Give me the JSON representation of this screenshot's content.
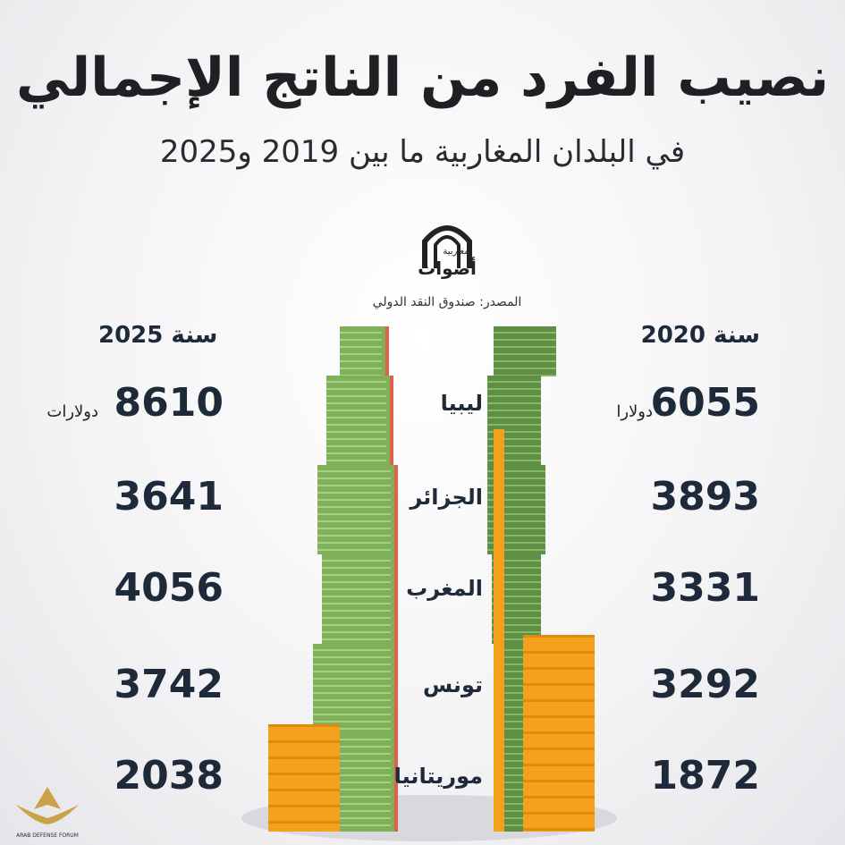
{
  "title": "نصيب الفرد من الناتج الإجمالي",
  "subtitle": "في البلدان المغاربية ما بين 2019 و2025",
  "logo": {
    "small": "مغاربية",
    "text": "أصوات"
  },
  "source": "المصدر: صندوق النقد الدولي",
  "watermark": "ARAB DEFENSE FORUM",
  "colors": {
    "green": "#7fb05a",
    "green_dark": "#5f8f44",
    "orange": "#f4a21d",
    "text": "#1e2a3a"
  },
  "chart_data": {
    "type": "table",
    "categories": [
      "ليبيا",
      "الجزائر",
      "المغرب",
      "تونس",
      "موريتانيا"
    ],
    "series": [
      {
        "name": "سنة 2020",
        "values": [
          6055,
          3893,
          3331,
          3292,
          1872
        ]
      },
      {
        "name": "سنة 2025",
        "values": [
          8610,
          3641,
          4056,
          3742,
          2038
        ]
      }
    ],
    "units": {
      "2020_first": "دولارا",
      "2025_first": "دولارات"
    },
    "labels": {
      "left_header": "سنة 2025",
      "right_header": "سنة 2020"
    }
  }
}
